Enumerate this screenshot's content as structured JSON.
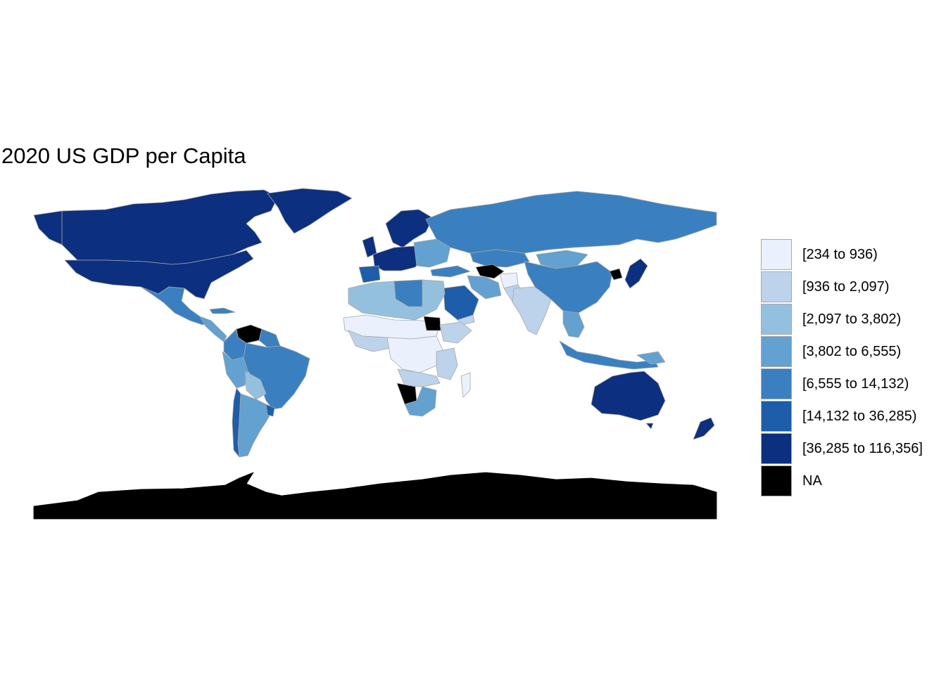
{
  "title": "2020 US GDP per Capita",
  "legend": {
    "items": [
      {
        "label": "[234 to 936)",
        "color": "#eaf1fc"
      },
      {
        "label": "[936 to 2,097)",
        "color": "#bdd3ec"
      },
      {
        "label": "[2,097 to 3,802)",
        "color": "#94c0df"
      },
      {
        "label": "[3,802 to 6,555)",
        "color": "#62a1d0"
      },
      {
        "label": "[6,555 to 14,132)",
        "color": "#3a80c0"
      },
      {
        "label": "[14,132 to 36,285)",
        "color": "#1d5da9"
      },
      {
        "label": "[36,285 to 116,356]",
        "color": "#0c2f7f"
      },
      {
        "label": "NA",
        "color": "#000000"
      }
    ]
  },
  "colors": {
    "border": "#a6a6a6",
    "background": "#ffffff"
  }
}
